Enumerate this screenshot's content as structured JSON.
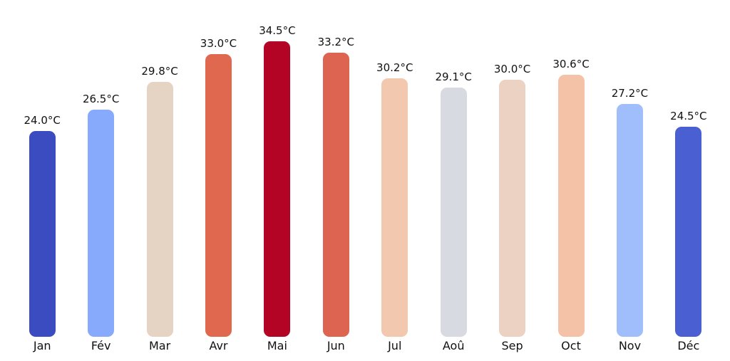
{
  "chart_data": {
    "type": "bar",
    "title": "",
    "xlabel": "",
    "ylabel": "",
    "unit": "°C",
    "categories": [
      "Jan",
      "Fév",
      "Mar",
      "Avr",
      "Mai",
      "Jun",
      "Jul",
      "Aoû",
      "Sep",
      "Oct",
      "Nov",
      "Déc"
    ],
    "values": [
      24.0,
      26.5,
      29.8,
      33.0,
      34.5,
      33.2,
      30.2,
      29.1,
      30.0,
      30.6,
      27.2,
      24.5
    ],
    "value_labels": [
      "24.0°C",
      "26.5°C",
      "29.8°C",
      "33.0°C",
      "34.5°C",
      "33.2°C",
      "30.2°C",
      "29.1°C",
      "30.0°C",
      "30.6°C",
      "27.2°C",
      "24.5°C"
    ],
    "bar_colors": [
      "#3b4cc0",
      "#88aafc",
      "#e5d3c4",
      "#e0684f",
      "#b40426",
      "#dc6450",
      "#f2c9ae",
      "#d7dae1",
      "#ebd2c3",
      "#f4c2a6",
      "#a1befc",
      "#4a60d2"
    ],
    "palette": "coolwarm (blue = coolest month, dark red = hottest month)",
    "ylim": [
      0,
      36.8
    ],
    "grid": false,
    "axes_visible": false,
    "legend": null,
    "value_label_position": "above-bar",
    "background_color": "#ffffff",
    "text_color": "#111111"
  }
}
